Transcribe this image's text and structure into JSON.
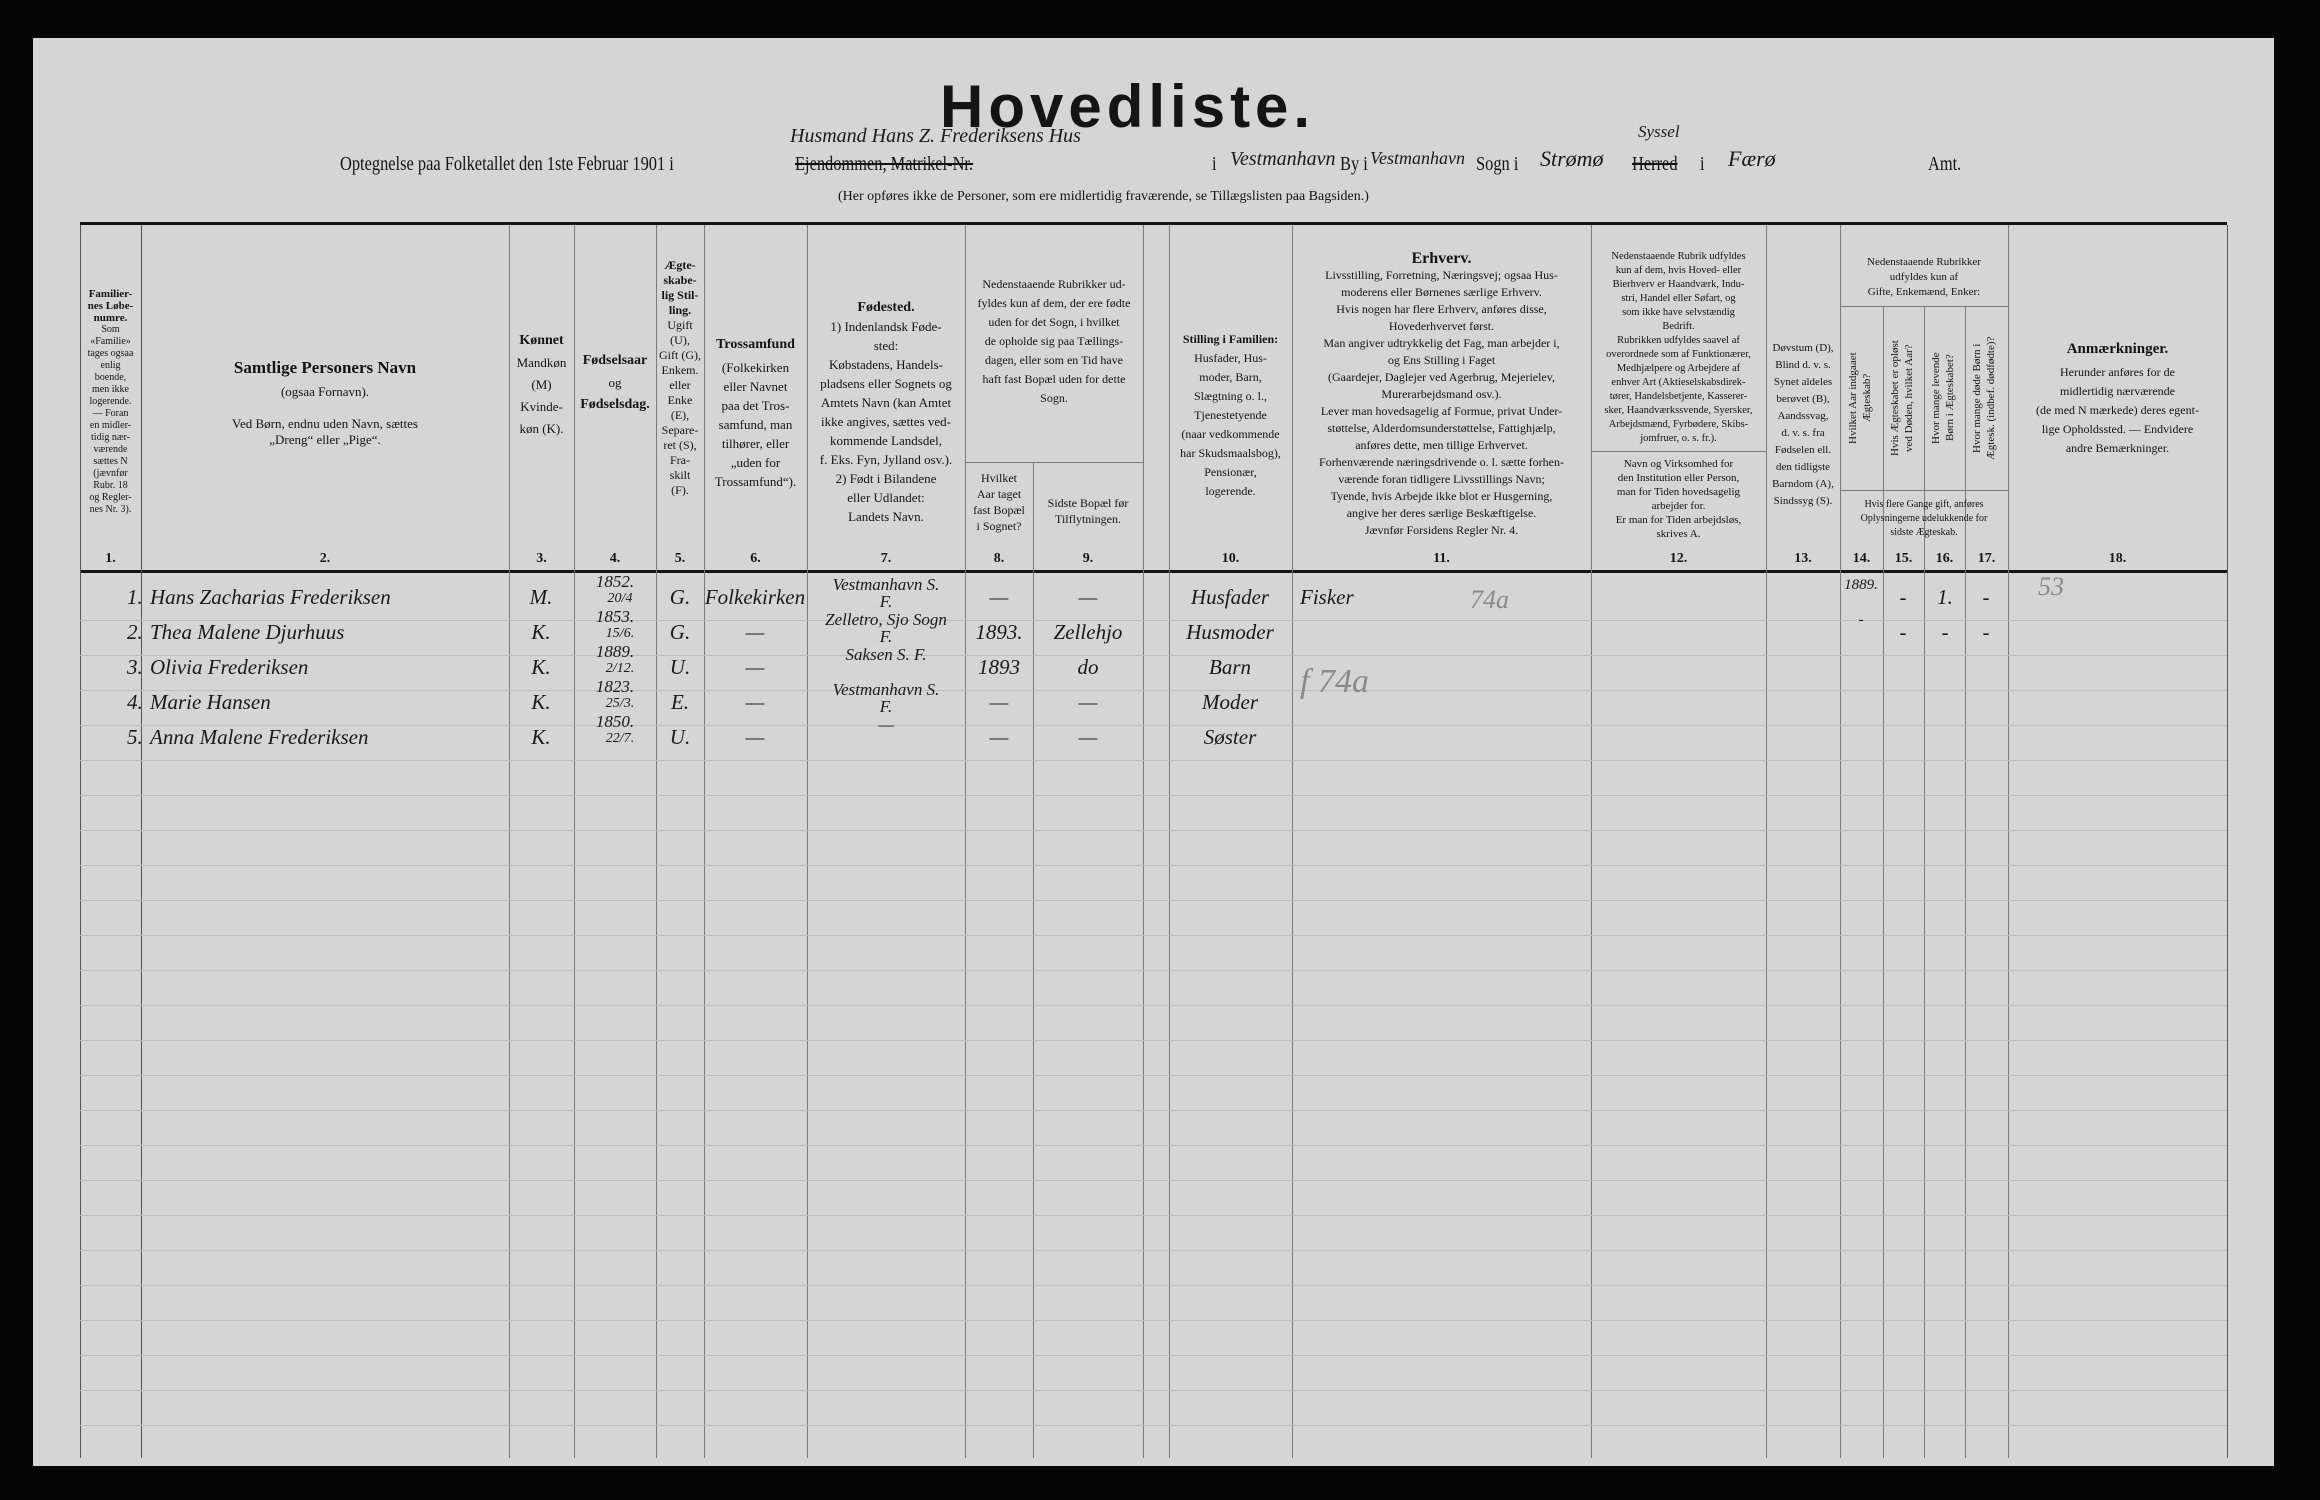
{
  "form": {
    "title": "Hovedliste.",
    "line_prefix": "Optegnelse paa Folketallet den 1ste Februar 1901 i",
    "struck_property": "Ejendommen, Matrikel-Nr.",
    "hw_property": "Husmand Hans Z. Frederiksens Hus",
    "i1": "i",
    "hw_place": "Vestmanhavn",
    "by_label": "By i",
    "hw_by": "Vestmanhavn",
    "sogn_label": "Sogn i",
    "hw_sogn": "Strømø",
    "hw_syssel": "Syssel",
    "struck_herred": "Herred",
    "i2": "i",
    "hw_amt": "Færø",
    "amt_label": "Amt.",
    "note": "(Her opføres ikke de Personer, som ere midlertidig fraværende, se Tillægslisten paa Bagsiden.)"
  },
  "headers": {
    "c1": {
      "title": "Familier-\nnes Løbe-\nnumre.",
      "body": "Som\n«Familie»\ntages ogsaa\nenlig\nboende,\nmen ikke\nlogerende.\n— Foran\nen midler-\ntidig nær-\nværende\nsættes N\n(jævnfør\nRubr. 18\nog Regler-\nnes Nr. 3).",
      "num": "1."
    },
    "c2": {
      "title": "Samtlige Personers Navn",
      "body": "(ogsaa Fornavn).\n\nVed Børn, endnu uden Navn, sættes\n„Dreng“ eller „Pige“.",
      "num": "2."
    },
    "c3": {
      "title": "Kønnet",
      "body": "Mandkøn\n(M)\nKvinde-\nkøn (K).",
      "num": "3."
    },
    "c4": {
      "title": "Fødselsaar",
      "body": "og",
      "title2": "Fødselsdag.",
      "num": "4."
    },
    "c5": {
      "title": "Ægte-\nskabe-\nlig Stil-\nling.",
      "body": "Ugift\n(U),\nGift (G),\nEnkem.\neller\nEnke\n(E),\nSepare-\nret (S),\nFra-\nskilt\n(F).",
      "num": "5."
    },
    "c6": {
      "title": "Trossamfund",
      "body": "(Folkekirken\neller Navnet\npaa det Tros-\nsamfund, man\ntilhører, eller\n„uden for\nTrossamfund“).",
      "num": "6."
    },
    "c7": {
      "title": "Fødested.",
      "body": "1) Indenlandsk Føde-\nsted:\nKøbstadens, Handels-\npladsens eller Sognets og\nAmtets Navn (kan Amtet\nikke angives, sættes ved-\nkommende Landsdel,\nf. Eks. Fyn, Jylland osv.).\n2) Født i Bilandene\neller Udlandet:\nLandets Navn.",
      "num": "7."
    },
    "c89": {
      "body": "Nedenstaaende Rubrikker ud-\nfyldes kun af dem, der ere fødte\nuden for det Sogn, i hvilket\nde opholde sig paa Tællings-\ndagen, eller som en Tid have\nhaft fast Bopæl uden for dette\nSogn."
    },
    "c8": {
      "body": "Hvilket\nAar taget\nfast Bopæl\ni Sognet?",
      "num": "8."
    },
    "c9": {
      "body": "Sidste Bopæl før\nTilflytningen.",
      "num": "9."
    },
    "c10": {
      "title": "Stilling i Familien:",
      "body": "Husfader, Hus-\nmoder, Barn,\nSlægtning o. l.,\nTjenestetyende\n(naar vedkommende\nhar Skudsmaalsbog),\nPensionær,\nlogerende.",
      "num": "10."
    },
    "c11": {
      "title": "Erhverv.",
      "body": "Livsstilling, Forretning, Næringsvej; ogsaa Hus-\nmoderens eller Børnenes særlige Erhverv.\nHvis nogen har flere Erhverv, anføres disse,\nHovederhvervet først.\nMan angiver udtrykkelig det Fag, man arbejder i,\nog Ens Stilling i Faget\n(Gaardejer, Daglejer ved Agerbrug, Mejerielev,\nMurerarbejdsmand osv.).\nLever man hovedsagelig af Formue, privat Under-\nstøttelse, Alderdomsunderstøttelse, Fattighjælp,\nanføres dette, men tillige Erhvervet.\nForhenværende næringsdrivende o. l. sætte forhen-\nværende foran tidligere Livsstillings Navn;\nTyende, hvis Arbejde ikke blot er Husgerning,\nangive her deres særlige Beskæftigelse.\nJævnfør Forsidens Regler Nr. 4.",
      "num": "11."
    },
    "c12": {
      "body_top": "Nedenstaaende Rubrik udfyldes\nkun af dem, hvis Hoved- eller\nBierhverv er Haandværk, Indu-\nstri, Handel eller Søfart, og\nsom ikke have selvstændig\nBedrift.\nRubrikken udfyldes saavel af\noverordnede som af Funktionærer,\nMedhjælpere og Arbejdere af\nenhver Art (Aktieselskabsdirek-\ntører, Handelsbetjente, Kasserer-\nsker, Haandværkssvende, Syersker,\nArbejdsmænd, Fyrbødere, Skibs-\njomfruer, o. s. fr.).",
      "body_bottom": "Navn og Virksomhed for\nden Institution eller Person,\nman for Tiden hovedsagelig\narbejder for.\nEr man for Tiden arbejdsløs,\nskrives A.",
      "num": "12."
    },
    "c13": {
      "body": "Døvstum (D),\nBlind d. v. s.\nSynet aldeles\nberøvet (B),\nAandssvag,\nd. v. s. fra\nFødselen ell.\nden tidligste\nBarndom (A),\nSindssyg (S).",
      "num": "13."
    },
    "c1417": {
      "top": "Nedenstaaende Rubrikker\nudfyldes kun af\nGifte, Enkemænd, Enker:",
      "bottom": "Hvis flere Gange gift, anføres\nOplysningerne udelukkende for\nsidste Ægteskab."
    },
    "c14": {
      "body": "Hvilket Aar indgaaet\nÆgteskab?",
      "num": "14."
    },
    "c15": {
      "body": "Hvis Ægteskabet er opløst\nved Døden, hvilket Aar?",
      "num": "15."
    },
    "c16": {
      "body": "Hvor mange levende\nBørn i Ægteskabet?",
      "num": "16."
    },
    "c17": {
      "body": "Hvor mange døde Børn i\nÆgtesk. (indbef. dødfødte)?",
      "num": "17."
    },
    "c18": {
      "title": "Anmærkninger.",
      "body": "Herunder anføres for de\nmidlertidig nærværende\n(de med N mærkede) deres egent-\nlige Opholdssted. — Endvidere\nandre Bemærkninger.",
      "num": "18."
    }
  },
  "rows": [
    {
      "no": "1.",
      "name": "Hans Zacharias Frederiksen",
      "sex": "M.",
      "year": "1852.",
      "date": "20/4",
      "civil": "G.",
      "faith": "Folkekirken",
      "birthplace": "Vestmanhavn S.",
      "birthplace2": "F.",
      "settled": "—",
      "last_home": "—",
      "family": "Husfader",
      "occupation": "Fisker",
      "married_year": "1889.",
      "c15": "-",
      "children": "1.",
      "c17": "-"
    },
    {
      "no": "2.",
      "name": "Thea Malene Djurhuus",
      "sex": "K.",
      "year": "1853.",
      "date": "15/6.",
      "civil": "G.",
      "faith": "—",
      "birthplace": "Zelletro, Sjo Sogn",
      "birthplace2": "F.",
      "settled": "1893.",
      "last_home": "Zellehjo",
      "family": "Husmoder",
      "occupation": "",
      "married_year": "-",
      "c15": "-",
      "children": "-",
      "c17": "-"
    },
    {
      "no": "3.",
      "name": "Olivia Frederiksen",
      "sex": "K.",
      "year": "1889.",
      "date": "2/12.",
      "civil": "U.",
      "faith": "—",
      "birthplace": "Saksen S. F.",
      "birthplace2": "",
      "settled": "1893",
      "last_home": "do",
      "family": "Barn",
      "occupation": "",
      "married_year": "",
      "c15": "",
      "children": "",
      "c17": ""
    },
    {
      "no": "4.",
      "name": "Marie Hansen",
      "sex": "K.",
      "year": "1823.",
      "date": "25/3.",
      "civil": "E.",
      "faith": "—",
      "birthplace": "Vestmanhavn S.",
      "birthplace2": "F.",
      "settled": "—",
      "last_home": "—",
      "family": "Moder",
      "occupation": "",
      "married_year": "",
      "c15": "",
      "children": "",
      "c17": ""
    },
    {
      "no": "5.",
      "name": "Anna Malene Frederiksen",
      "sex": "K.",
      "year": "1850.",
      "date": "22/7.",
      "civil": "U.",
      "faith": "—",
      "birthplace": "—",
      "birthplace2": "",
      "settled": "—",
      "last_home": "—",
      "family": "Søster",
      "occupation": "",
      "married_year": "",
      "c15": "",
      "children": "",
      "c17": ""
    }
  ],
  "pencil": {
    "occ_code_1": "74a",
    "occ_code_group": "f 74a",
    "remark_1": "53"
  },
  "colors": {
    "paper": "#d5d5d5",
    "ink": "#141414",
    "pencil": "#8a8a8a",
    "border": "#050505"
  }
}
